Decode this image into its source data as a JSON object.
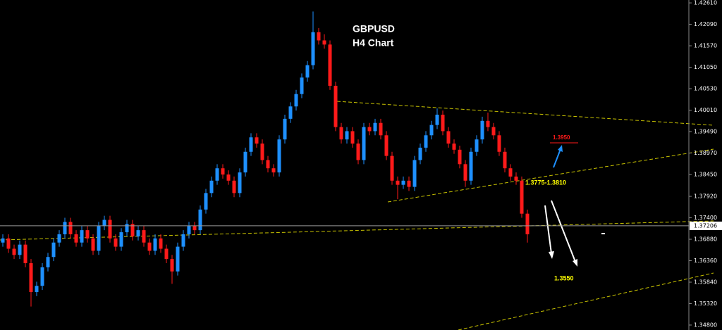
{
  "chart_data": {
    "type": "candlestick",
    "annotations": [
      "GBPUSD",
      "H4 Chart",
      "1.3950",
      "1.3775-1.3810",
      "1.3550"
    ],
    "up_color": "#1e90ff",
    "down_color": "#ff1a1a",
    "ylim": [
      1.3468,
      1.4268
    ],
    "yticks": [
      {
        "value": 1.4261,
        "label": "1.42610"
      },
      {
        "value": 1.4209,
        "label": "1.42090"
      },
      {
        "value": 1.4157,
        "label": "1.41570"
      },
      {
        "value": 1.4105,
        "label": "1.41050"
      },
      {
        "value": 1.4053,
        "label": "1.40530"
      },
      {
        "value": 1.4001,
        "label": "1.40010"
      },
      {
        "value": 1.3949,
        "label": "1.39490"
      },
      {
        "value": 1.3897,
        "label": "1.38970"
      },
      {
        "value": 1.3845,
        "label": "1.38450"
      },
      {
        "value": 1.3792,
        "label": "1.37920"
      },
      {
        "value": 1.374,
        "label": "1.37400"
      },
      {
        "value": 1.3688,
        "label": "1.36880"
      },
      {
        "value": 1.3636,
        "label": "1.36360"
      },
      {
        "value": 1.3584,
        "label": "1.35840"
      },
      {
        "value": 1.3532,
        "label": "1.35320"
      },
      {
        "value": 1.348,
        "label": "1.34800"
      }
    ],
    "current_price": 1.37206,
    "current_price_label": "1.37206",
    "open": [
      1.368,
      1.369,
      1.3665,
      1.365,
      1.3675,
      1.363,
      1.356,
      1.3575,
      1.362,
      1.3645,
      1.368,
      1.37,
      1.373,
      1.37,
      1.368,
      1.371,
      1.369,
      1.366,
      1.372,
      1.3735,
      1.369,
      1.367,
      1.3705,
      1.3725,
      1.3695,
      1.371,
      1.368,
      1.366,
      1.369,
      1.3665,
      1.364,
      1.361,
      1.367,
      1.37,
      1.372,
      1.371,
      1.376,
      1.38,
      1.383,
      1.386,
      1.3845,
      1.383,
      1.38,
      1.385,
      1.39,
      1.3935,
      1.392,
      1.388,
      1.386,
      1.385,
      1.393,
      1.398,
      1.401,
      1.404,
      1.408,
      1.411,
      1.419,
      1.417,
      1.416,
      1.406,
      1.396,
      1.393,
      1.395,
      1.392,
      1.388,
      1.396,
      1.395,
      1.397,
      1.394,
      1.389,
      1.383,
      1.382,
      1.383,
      1.3815,
      1.388,
      1.391,
      1.394,
      1.3965,
      1.399,
      1.395,
      1.392,
      1.3905,
      1.387,
      1.383,
      1.39,
      1.393,
      1.3975,
      1.396,
      1.394,
      1.39,
      1.386,
      1.384,
      1.383,
      1.375
    ],
    "high": [
      1.37,
      1.37,
      1.3675,
      1.3685,
      1.3685,
      1.364,
      1.3585,
      1.363,
      1.3655,
      1.369,
      1.371,
      1.374,
      1.374,
      1.371,
      1.372,
      1.372,
      1.37,
      1.373,
      1.3745,
      1.3745,
      1.37,
      1.3715,
      1.3735,
      1.3735,
      1.372,
      1.372,
      1.369,
      1.37,
      1.37,
      1.3675,
      1.365,
      1.368,
      1.371,
      1.373,
      1.373,
      1.377,
      1.381,
      1.384,
      1.387,
      1.387,
      1.3855,
      1.384,
      1.386,
      1.391,
      1.3945,
      1.3945,
      1.393,
      1.389,
      1.387,
      1.394,
      1.399,
      1.402,
      1.405,
      1.409,
      1.412,
      1.424,
      1.42,
      1.4185,
      1.417,
      1.407,
      1.397,
      1.396,
      1.396,
      1.393,
      1.397,
      1.397,
      1.398,
      1.398,
      1.395,
      1.39,
      1.384,
      1.384,
      1.384,
      1.389,
      1.392,
      1.395,
      1.3975,
      1.4005,
      1.4,
      1.396,
      1.393,
      1.3915,
      1.388,
      1.391,
      1.394,
      1.3985,
      1.3995,
      1.397,
      1.395,
      1.391,
      1.387,
      1.385,
      1.384,
      1.376
    ],
    "low": [
      1.367,
      1.3655,
      1.364,
      1.364,
      1.362,
      1.3525,
      1.355,
      1.3565,
      1.361,
      1.3635,
      1.367,
      1.369,
      1.369,
      1.367,
      1.367,
      1.368,
      1.365,
      1.365,
      1.371,
      1.368,
      1.366,
      1.366,
      1.3695,
      1.3685,
      1.3685,
      1.367,
      1.365,
      1.365,
      1.3655,
      1.363,
      1.358,
      1.36,
      1.366,
      1.369,
      1.37,
      1.37,
      1.375,
      1.379,
      1.382,
      1.3835,
      1.382,
      1.379,
      1.379,
      1.384,
      1.389,
      1.391,
      1.387,
      1.385,
      1.384,
      1.384,
      1.392,
      1.397,
      1.4,
      1.403,
      1.407,
      1.41,
      1.416,
      1.415,
      1.405,
      1.395,
      1.392,
      1.392,
      1.391,
      1.387,
      1.387,
      1.394,
      1.394,
      1.393,
      1.388,
      1.382,
      1.3785,
      1.381,
      1.3805,
      1.3805,
      1.387,
      1.39,
      1.393,
      1.3955,
      1.394,
      1.391,
      1.3895,
      1.386,
      1.3815,
      1.382,
      1.389,
      1.392,
      1.395,
      1.393,
      1.389,
      1.385,
      1.383,
      1.382,
      1.374,
      1.368
    ],
    "close": [
      1.369,
      1.3665,
      1.365,
      1.3675,
      1.363,
      1.356,
      1.3575,
      1.362,
      1.3645,
      1.368,
      1.37,
      1.373,
      1.37,
      1.368,
      1.371,
      1.369,
      1.366,
      1.372,
      1.3735,
      1.369,
      1.367,
      1.3705,
      1.3725,
      1.3695,
      1.371,
      1.368,
      1.366,
      1.369,
      1.3665,
      1.364,
      1.361,
      1.367,
      1.37,
      1.372,
      1.371,
      1.376,
      1.38,
      1.383,
      1.386,
      1.3845,
      1.383,
      1.38,
      1.385,
      1.39,
      1.3935,
      1.392,
      1.388,
      1.386,
      1.385,
      1.393,
      1.398,
      1.401,
      1.404,
      1.408,
      1.411,
      1.419,
      1.417,
      1.416,
      1.406,
      1.396,
      1.393,
      1.395,
      1.392,
      1.388,
      1.396,
      1.395,
      1.397,
      1.394,
      1.389,
      1.383,
      1.382,
      1.383,
      1.3815,
      1.388,
      1.391,
      1.394,
      1.3965,
      1.399,
      1.395,
      1.392,
      1.3905,
      1.387,
      1.383,
      1.39,
      1.393,
      1.3975,
      1.396,
      1.394,
      1.39,
      1.386,
      1.384,
      1.383,
      1.375,
      1.37
    ]
  }
}
